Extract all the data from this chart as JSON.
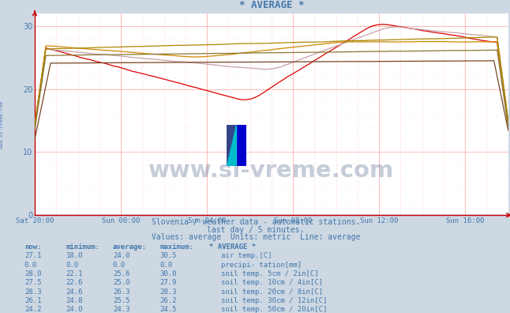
{
  "title": "* AVERAGE *",
  "bg_color": "#cdd8e3",
  "plot_bg_color": "#ffffff",
  "axis_color": "#cc0000",
  "grid_color_major": "#ffb0b0",
  "grid_color_minor": "#ffe0e0",
  "grid_color_minor_dot": "#e0e0ff",
  "text_color": "#4477aa",
  "subtitle1": "Slovenia / weather data - automatic stations.",
  "subtitle2": "last day / 5 minutes.",
  "subtitle3": "Values: average  Units: metric  Line: average",
  "watermark": "www.si-vreme.com",
  "xlabel_ticks": [
    "Sat 20:00",
    "Sun 00:00",
    "Sun 04:00",
    "Sun 08:00",
    "Sun 12:00",
    "Sun 16:00"
  ],
  "ylim": [
    0,
    32
  ],
  "yticks": [
    0,
    10,
    20,
    30
  ],
  "num_points": 300,
  "series": [
    {
      "label": "air temp.[C]",
      "color": "#dd0000",
      "profile": "air_temp"
    },
    {
      "label": "precipi- tation[mm]",
      "color": "#0000cc",
      "profile": "zero"
    },
    {
      "label": "soil temp. 5cm / 2in[C]",
      "color": "#c8a0a8",
      "profile": "soil5"
    },
    {
      "label": "soil temp. 10cm / 4in[C]",
      "color": "#cc8800",
      "profile": "soil10"
    },
    {
      "label": "soil temp. 20cm / 8in[C]",
      "color": "#aa8800",
      "profile": "soil20"
    },
    {
      "label": "soil temp. 30cm / 12in[C]",
      "color": "#887733",
      "profile": "soil30"
    },
    {
      "label": "soil temp. 50cm / 20in[C]",
      "color": "#774422",
      "profile": "soil50"
    }
  ],
  "table_rows": [
    {
      "now": "27.1",
      "min": "18.0",
      "avg": "24.0",
      "max": "30.5",
      "color": "#dd0000",
      "label": "air temp.[C]"
    },
    {
      "now": "0.0",
      "min": "0.0",
      "avg": "0.0",
      "max": "0.0",
      "color": "#0000cc",
      "label": "precipi- tation[mm]"
    },
    {
      "now": "28.0",
      "min": "22.1",
      "avg": "25.6",
      "max": "30.0",
      "color": "#c8a0a8",
      "label": "soil temp. 5cm / 2in[C]"
    },
    {
      "now": "27.5",
      "min": "22.6",
      "avg": "25.0",
      "max": "27.9",
      "color": "#cc8800",
      "label": "soil temp. 10cm / 4in[C]"
    },
    {
      "now": "28.3",
      "min": "24.6",
      "avg": "26.3",
      "max": "28.3",
      "color": "#aa8800",
      "label": "soil temp. 20cm / 8in[C]"
    },
    {
      "now": "26.1",
      "min": "24.8",
      "avg": "25.5",
      "max": "26.2",
      "color": "#887733",
      "label": "soil temp. 30cm / 12in[C]"
    },
    {
      "now": "24.2",
      "min": "24.0",
      "avg": "24.3",
      "max": "24.5",
      "color": "#774422",
      "label": "soil temp. 50cm / 20in[C]"
    }
  ]
}
